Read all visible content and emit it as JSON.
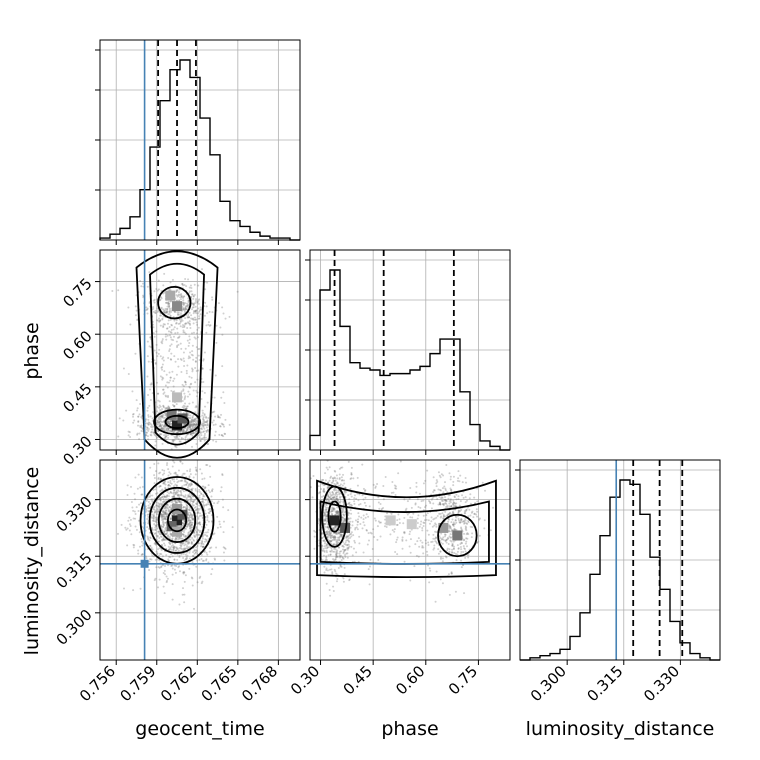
{
  "chart_data": {
    "type": "corner",
    "parameters": [
      "geocent_time",
      "phase",
      "luminosity_distance"
    ],
    "labels": {
      "geocent_time": "geocent_time",
      "phase": "phase",
      "luminosity_distance": "luminosity_distance"
    },
    "ranges": {
      "geocent_time": [
        0.7548,
        0.7696
      ],
      "phase": [
        0.27,
        0.84
      ],
      "luminosity_distance": [
        0.2875,
        0.3405
      ]
    },
    "ticks": {
      "geocent_time": [
        "0.756",
        "0.759",
        "0.762",
        "0.765",
        "0.768"
      ],
      "phase": [
        "0.30",
        "0.45",
        "0.60",
        "0.75"
      ],
      "luminosity_distance": [
        "0.300",
        "0.315",
        "0.330"
      ]
    },
    "truths": {
      "geocent_time": 0.7581,
      "luminosity_distance": 0.313
    },
    "quantiles": {
      "geocent_time": [
        0.7591,
        0.7605,
        0.7619
      ],
      "phase": [
        0.34,
        0.48,
        0.68
      ],
      "luminosity_distance": [
        0.3175,
        0.3245,
        0.3305
      ]
    },
    "histograms": {
      "geocent_time": {
        "bins": 20,
        "counts": [
          1,
          3,
          6,
          12,
          26,
          48,
          72,
          88,
          93,
          84,
          63,
          44,
          20,
          10,
          7,
          4,
          2,
          1,
          1,
          0
        ]
      },
      "phase": {
        "bins": 20,
        "counts": [
          8,
          88,
          99,
          68,
          48,
          45,
          44,
          41,
          42,
          42,
          44,
          46,
          53,
          61,
          61,
          32,
          14,
          5,
          2,
          0
        ]
      },
      "luminosity_distance": {
        "bins": 20,
        "counts": [
          0,
          1,
          2,
          3,
          5,
          11,
          22,
          40,
          58,
          76,
          84,
          82,
          68,
          48,
          33,
          18,
          8,
          3,
          1,
          0
        ]
      }
    },
    "contour_levels": 4,
    "grid": true
  }
}
